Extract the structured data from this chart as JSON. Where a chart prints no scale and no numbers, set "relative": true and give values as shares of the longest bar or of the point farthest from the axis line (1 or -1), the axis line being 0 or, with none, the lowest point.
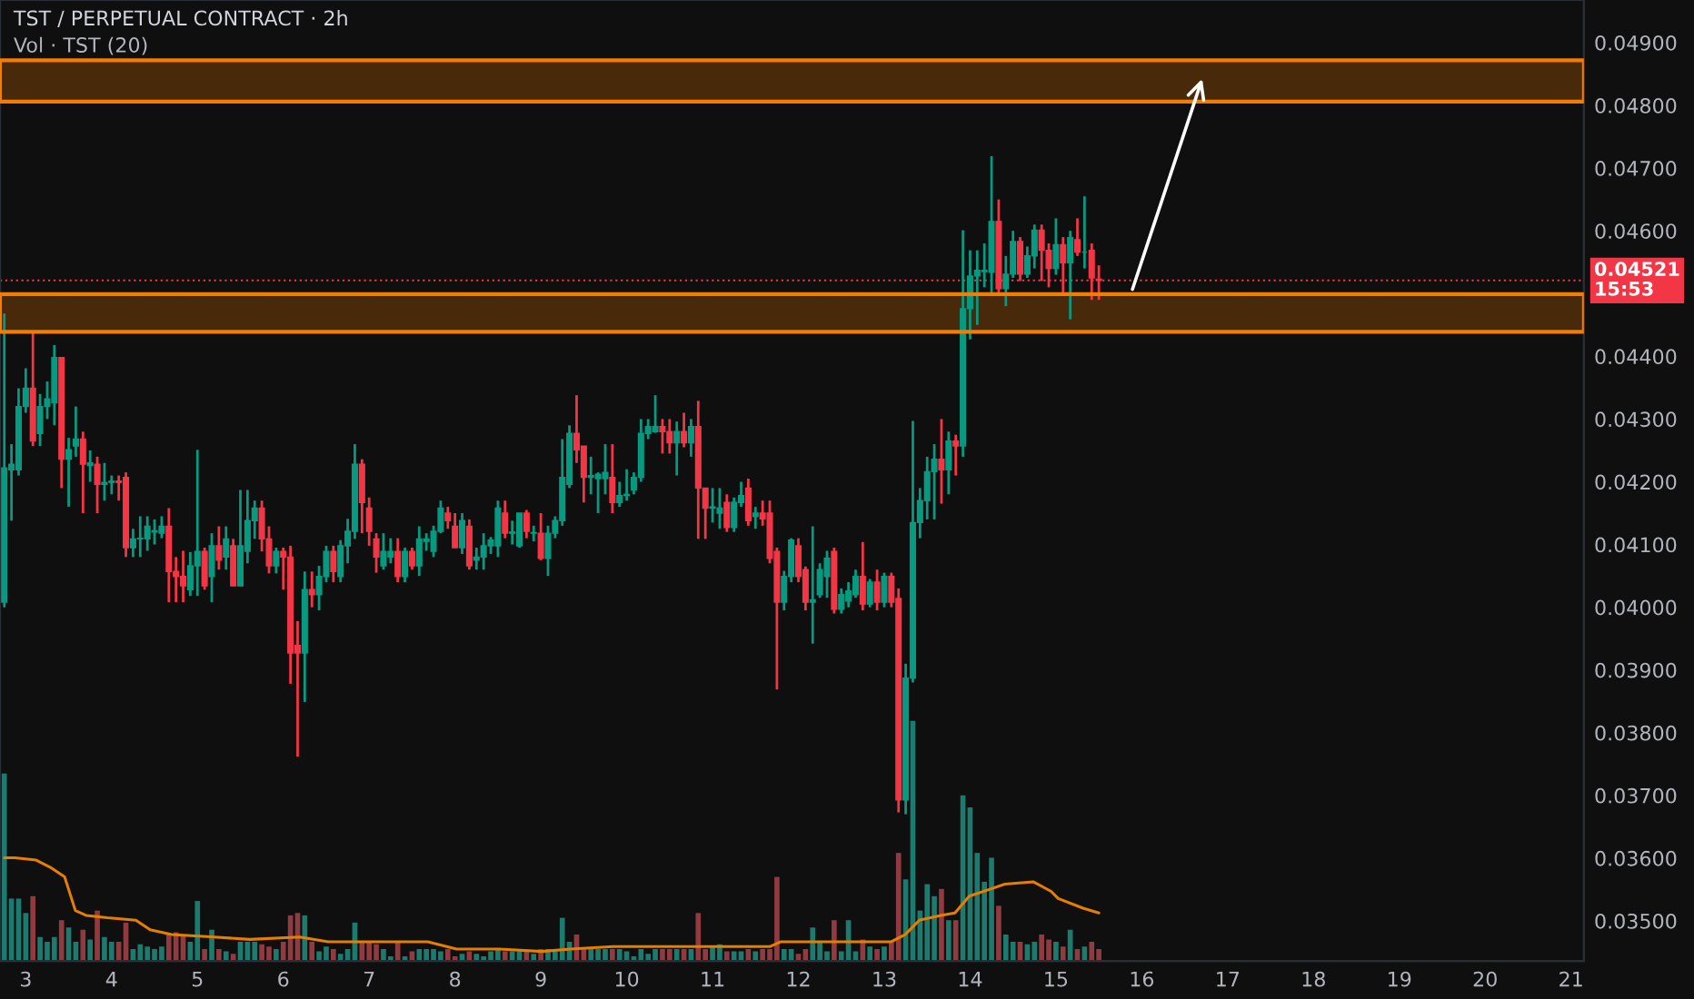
{
  "chart_data": [
    {
      "type": "candlestick",
      "title": "TST / PERPETUAL CONTRACT · 2h",
      "x": [
        2.75,
        2.8333,
        2.9167,
        3,
        3.0833,
        3.1667,
        3.25,
        3.3333,
        3.4167,
        3.5,
        3.5833,
        3.6667,
        3.75,
        3.8333,
        3.9167,
        4,
        4.0833,
        4.1667,
        4.25,
        4.3333,
        4.4167,
        4.5,
        4.5833,
        4.6667,
        4.75,
        4.8333,
        4.9167,
        5,
        5.0833,
        5.1667,
        5.25,
        5.3333,
        5.4167,
        5.5,
        5.5833,
        5.6667,
        5.75,
        5.8333,
        5.9167,
        6,
        6.0833,
        6.1667,
        6.25,
        6.3333,
        6.4167,
        6.5,
        6.5833,
        6.6667,
        6.75,
        6.8333,
        6.9167,
        7,
        7.0833,
        7.1667,
        7.25,
        7.3333,
        7.4167,
        7.5,
        7.5833,
        7.6667,
        7.75,
        7.8333,
        7.9167,
        8,
        8.0833,
        8.1667,
        8.25,
        8.3333,
        8.4167,
        8.5,
        8.5833,
        8.6667,
        8.75,
        8.8333,
        8.9167,
        9,
        9.0833,
        9.1667,
        9.25,
        9.3333,
        9.4167,
        9.5,
        9.5833,
        9.6667,
        9.75,
        9.8333,
        9.9167,
        10,
        10.0833,
        10.1667,
        10.25,
        10.3333,
        10.4167,
        10.5,
        10.5833,
        10.6667,
        10.75,
        10.8333,
        10.9167,
        11,
        11.0833,
        11.1667,
        11.25,
        11.3333,
        11.4167,
        11.5,
        11.5833,
        11.6667,
        11.75,
        11.8333,
        11.9167,
        12,
        12.0833,
        12.1667,
        12.25,
        12.3333,
        12.4167,
        12.5,
        12.5833,
        12.6667,
        12.75,
        12.8333,
        12.9167,
        13,
        13.0833,
        13.1667,
        13.25,
        13.3333,
        13.4167,
        13.5,
        13.5833,
        13.6667,
        13.75,
        13.8333,
        13.9167,
        14,
        14.0833,
        14.1667,
        14.25,
        14.3333,
        14.4167,
        14.5,
        14.5833,
        14.6667,
        14.75,
        14.8333,
        14.9167,
        15,
        15.0833,
        15.1667,
        15.25,
        15.3333,
        15.4167,
        15.5
      ],
      "ohlc": [
        [
          0.04008,
          0.04468,
          0.04,
          0.04222
        ],
        [
          0.04219,
          0.0426,
          0.04138,
          0.04228
        ],
        [
          0.04219,
          0.04349,
          0.0421,
          0.0432
        ],
        [
          0.0432,
          0.04381,
          0.0431,
          0.04349
        ],
        [
          0.04349,
          0.04439,
          0.04257,
          0.04265
        ],
        [
          0.04277,
          0.0434,
          0.04257,
          0.0432
        ],
        [
          0.0432,
          0.0436,
          0.043,
          0.04332
        ],
        [
          0.04326,
          0.04418,
          0.0429,
          0.04398
        ],
        [
          0.04398,
          0.04398,
          0.0419,
          0.04236
        ],
        [
          0.04236,
          0.0427,
          0.0416,
          0.04251
        ],
        [
          0.04257,
          0.0432,
          0.0424,
          0.04268
        ],
        [
          0.04268,
          0.0428,
          0.0415,
          0.04228
        ],
        [
          0.04226,
          0.0425,
          0.042,
          0.0423
        ],
        [
          0.04228,
          0.0424,
          0.0415,
          0.04196
        ],
        [
          0.04196,
          0.0423,
          0.0417,
          0.04199
        ],
        [
          0.04199,
          0.0421,
          0.0418,
          0.04201
        ],
        [
          0.04201,
          0.0421,
          0.0417,
          0.04199
        ],
        [
          0.04207,
          0.04215,
          0.0408,
          0.04095
        ],
        [
          0.04095,
          0.04125,
          0.0408,
          0.04109
        ],
        [
          0.04109,
          0.04145,
          0.0408,
          0.0411
        ],
        [
          0.04109,
          0.04145,
          0.0409,
          0.04129
        ],
        [
          0.0412,
          0.0414,
          0.041,
          0.04122
        ],
        [
          0.04118,
          0.04145,
          0.0411,
          0.04129
        ],
        [
          0.04129,
          0.04158,
          0.04008,
          0.04057
        ],
        [
          0.04057,
          0.0408,
          0.04008,
          0.04049
        ],
        [
          0.04049,
          0.0409,
          0.04008,
          0.04034
        ],
        [
          0.04028,
          0.04088,
          0.04018,
          0.04066
        ],
        [
          0.04066,
          0.04251,
          0.04018,
          0.04089
        ],
        [
          0.04089,
          0.04095,
          0.04028,
          0.04034
        ],
        [
          0.04049,
          0.04118,
          0.04008,
          0.04098
        ],
        [
          0.04098,
          0.04129,
          0.0406,
          0.04075
        ],
        [
          0.0408,
          0.04129,
          0.0406,
          0.04109
        ],
        [
          0.04098,
          0.04109,
          0.04034,
          0.04034
        ],
        [
          0.04034,
          0.04187,
          0.04034,
          0.04098
        ],
        [
          0.04089,
          0.04187,
          0.0407,
          0.04138
        ],
        [
          0.04138,
          0.0417,
          0.04109,
          0.04158
        ],
        [
          0.04158,
          0.0417,
          0.04089,
          0.04109
        ],
        [
          0.04109,
          0.04129,
          0.04054,
          0.04066
        ],
        [
          0.04066,
          0.04095,
          0.04054,
          0.04089
        ],
        [
          0.04089,
          0.04095,
          0.04028,
          0.0408
        ],
        [
          0.0408,
          0.04098,
          0.03878,
          0.03927
        ],
        [
          0.03939,
          0.03978,
          0.03762,
          0.03927
        ],
        [
          0.03927,
          0.04057,
          0.03849,
          0.04028
        ],
        [
          0.04028,
          0.04057,
          0.04,
          0.0402
        ],
        [
          0.0402,
          0.04066,
          0.03995,
          0.04049
        ],
        [
          0.04049,
          0.04098,
          0.0404,
          0.04089
        ],
        [
          0.04089,
          0.04098,
          0.0404,
          0.04057
        ],
        [
          0.04049,
          0.04107,
          0.0404,
          0.04098
        ],
        [
          0.04098,
          0.04141,
          0.0407,
          0.04121
        ],
        [
          0.04121,
          0.0426,
          0.04109,
          0.04228
        ],
        [
          0.04228,
          0.04236,
          0.04118,
          0.04167
        ],
        [
          0.04158,
          0.04175,
          0.04098,
          0.04121
        ],
        [
          0.04109,
          0.04118,
          0.04055,
          0.0408
        ],
        [
          0.04066,
          0.04118,
          0.0406,
          0.04089
        ],
        [
          0.0408,
          0.0411,
          0.0407,
          0.04089
        ],
        [
          0.04089,
          0.0411,
          0.0404,
          0.04049
        ],
        [
          0.04049,
          0.04095,
          0.0404,
          0.04089
        ],
        [
          0.04089,
          0.04095,
          0.0406,
          0.04066
        ],
        [
          0.04066,
          0.04129,
          0.0405,
          0.04109
        ],
        [
          0.04105,
          0.04118,
          0.0409,
          0.04109
        ],
        [
          0.04089,
          0.0413,
          0.0408,
          0.04121
        ],
        [
          0.04121,
          0.0417,
          0.04118,
          0.04158
        ],
        [
          0.0415,
          0.0416,
          0.04125,
          0.04138
        ],
        [
          0.04129,
          0.0415,
          0.04095,
          0.04095
        ],
        [
          0.04095,
          0.0415,
          0.04085,
          0.04138
        ],
        [
          0.04129,
          0.0414,
          0.0406,
          0.04066
        ],
        [
          0.04075,
          0.04095,
          0.0406,
          0.0408
        ],
        [
          0.0408,
          0.04118,
          0.0406,
          0.04098
        ],
        [
          0.04098,
          0.04112,
          0.04085,
          0.04107
        ],
        [
          0.04098,
          0.0417,
          0.0408,
          0.04158
        ],
        [
          0.0415,
          0.0417,
          0.0411,
          0.04118
        ],
        [
          0.04118,
          0.04138,
          0.041,
          0.0412
        ],
        [
          0.04098,
          0.0415,
          0.04095,
          0.0415
        ],
        [
          0.0415,
          0.04155,
          0.0411,
          0.04121
        ],
        [
          0.04118,
          0.0413,
          0.04105,
          0.04119
        ],
        [
          0.04118,
          0.0415,
          0.04075,
          0.04078
        ],
        [
          0.04078,
          0.0413,
          0.0405,
          0.04118
        ],
        [
          0.04118,
          0.04145,
          0.0411,
          0.04138
        ],
        [
          0.04138,
          0.04268,
          0.0413,
          0.04207
        ],
        [
          0.04196,
          0.0429,
          0.0419,
          0.04277
        ],
        [
          0.04277,
          0.04338,
          0.0423,
          0.04251
        ],
        [
          0.04257,
          0.04257,
          0.04167,
          0.04207
        ],
        [
          0.04207,
          0.0424,
          0.0418,
          0.0421
        ],
        [
          0.04205,
          0.04215,
          0.0415,
          0.04212
        ],
        [
          0.04205,
          0.0426,
          0.0418,
          0.04215
        ],
        [
          0.04207,
          0.0426,
          0.0415,
          0.04167
        ],
        [
          0.04167,
          0.042,
          0.0416,
          0.04178
        ],
        [
          0.04178,
          0.0422,
          0.0417,
          0.0418
        ],
        [
          0.04187,
          0.04215,
          0.0418,
          0.04207
        ],
        [
          0.04207,
          0.043,
          0.042,
          0.04277
        ],
        [
          0.04277,
          0.043,
          0.04268,
          0.04288
        ],
        [
          0.0428,
          0.04338,
          0.04278,
          0.04288
        ],
        [
          0.04288,
          0.043,
          0.04245,
          0.0428
        ],
        [
          0.0428,
          0.043,
          0.04245,
          0.04262
        ],
        [
          0.04262,
          0.04296,
          0.0421,
          0.0428
        ],
        [
          0.0428,
          0.0431,
          0.04255,
          0.04262
        ],
        [
          0.04262,
          0.043,
          0.0424,
          0.04288
        ],
        [
          0.04288,
          0.04329,
          0.04109,
          0.0419
        ],
        [
          0.0419,
          0.0419,
          0.04109,
          0.04158
        ],
        [
          0.04158,
          0.0419,
          0.04135,
          0.0416
        ],
        [
          0.0415,
          0.0419,
          0.04125,
          0.04158
        ],
        [
          0.04167,
          0.0418,
          0.0412,
          0.04127
        ],
        [
          0.04127,
          0.04175,
          0.0412,
          0.04167
        ],
        [
          0.04167,
          0.042,
          0.0416,
          0.04178
        ],
        [
          0.0419,
          0.04205,
          0.0413,
          0.04138
        ],
        [
          0.04145,
          0.0416,
          0.04125,
          0.0415
        ],
        [
          0.0415,
          0.0417,
          0.0413,
          0.04141
        ],
        [
          0.0415,
          0.0417,
          0.0407,
          0.04078
        ],
        [
          0.04089,
          0.04095,
          0.03869,
          0.04008
        ],
        [
          0.04008,
          0.04058,
          0.03995,
          0.04049
        ],
        [
          0.04049,
          0.0411,
          0.0404,
          0.04107
        ],
        [
          0.04098,
          0.0411,
          0.0404,
          0.04049
        ],
        [
          0.0406,
          0.04065,
          0.03995,
          0.04008
        ],
        [
          0.04008,
          0.04129,
          0.03942,
          0.04012
        ],
        [
          0.0402,
          0.0407,
          0.04015,
          0.0406
        ],
        [
          0.04049,
          0.0409,
          0.04015,
          0.04078
        ],
        [
          0.04089,
          0.04095,
          0.0399,
          0.03997
        ],
        [
          0.03997,
          0.0403,
          0.0399,
          0.0402
        ],
        [
          0.0401,
          0.0404,
          0.04,
          0.04026
        ],
        [
          0.0402,
          0.0406,
          0.04015,
          0.04049
        ],
        [
          0.04049,
          0.04104,
          0.03995,
          0.04005
        ],
        [
          0.04005,
          0.04045,
          0.04,
          0.0404
        ],
        [
          0.0404,
          0.0406,
          0.03995,
          0.04008
        ],
        [
          0.04008,
          0.04055,
          0.04,
          0.04049
        ],
        [
          0.04049,
          0.04055,
          0.04,
          0.04008
        ],
        [
          0.04014,
          0.0403,
          0.03673,
          0.03693
        ],
        [
          0.03693,
          0.0391,
          0.0367,
          0.03887
        ],
        [
          0.03887,
          0.04297,
          0.0388,
          0.04135
        ],
        [
          0.04135,
          0.0419,
          0.0411,
          0.0417
        ],
        [
          0.0417,
          0.0424,
          0.0414,
          0.04216
        ],
        [
          0.04216,
          0.0426,
          0.0414,
          0.04236
        ],
        [
          0.04236,
          0.043,
          0.04165,
          0.04219
        ],
        [
          0.04219,
          0.0428,
          0.0418,
          0.04265
        ],
        [
          0.04265,
          0.04275,
          0.0421,
          0.04257
        ],
        [
          0.04257,
          0.04601,
          0.0424,
          0.04476
        ],
        [
          0.04476,
          0.04569,
          0.04427,
          0.04528
        ],
        [
          0.04528,
          0.04569,
          0.0445,
          0.04537
        ],
        [
          0.04535,
          0.0458,
          0.0451,
          0.04537
        ],
        [
          0.04534,
          0.04719,
          0.045,
          0.04615
        ],
        [
          0.04615,
          0.0465,
          0.045,
          0.04508
        ],
        [
          0.04508,
          0.0456,
          0.0448,
          0.04531
        ],
        [
          0.04531,
          0.046,
          0.04525,
          0.04583
        ],
        [
          0.04583,
          0.0459,
          0.0452,
          0.04531
        ],
        [
          0.04531,
          0.04575,
          0.04525,
          0.0456
        ],
        [
          0.0456,
          0.0461,
          0.0454,
          0.04601
        ],
        [
          0.04601,
          0.0461,
          0.0452,
          0.04569
        ],
        [
          0.04569,
          0.0458,
          0.0451,
          0.0454
        ],
        [
          0.0454,
          0.0462,
          0.0453,
          0.04578
        ],
        [
          0.04578,
          0.0459,
          0.045,
          0.04549
        ],
        [
          0.04549,
          0.046,
          0.04459,
          0.04589
        ],
        [
          0.04586,
          0.0462,
          0.0456,
          0.04566
        ],
        [
          0.04566,
          0.04655,
          0.0454,
          0.04566
        ],
        [
          0.04569,
          0.0458,
          0.0449,
          0.04525
        ],
        [
          0.04523,
          0.04545,
          0.0449,
          0.04521
        ]
      ],
      "colors": [
        "#089981",
        "#089981",
        "#089981",
        "#089981",
        "#f23645",
        "#089981",
        "#089981",
        "#089981",
        "#f23645",
        "#089981",
        "#089981",
        "#f23645",
        "#089981",
        "#f23645",
        "#089981",
        "#089981",
        "#f23645",
        "#f23645",
        "#089981",
        "#089981",
        "#089981",
        "#089981",
        "#089981",
        "#f23645",
        "#f23645",
        "#f23645",
        "#089981",
        "#089981",
        "#f23645",
        "#089981",
        "#f23645",
        "#089981",
        "#f23645",
        "#089981",
        "#089981",
        "#089981",
        "#f23645",
        "#f23645",
        "#089981",
        "#f23645",
        "#f23645",
        "#f23645",
        "#089981",
        "#f23645",
        "#089981",
        "#089981",
        "#f23645",
        "#089981",
        "#089981",
        "#089981",
        "#f23645",
        "#f23645",
        "#f23645",
        "#089981",
        "#089981",
        "#f23645",
        "#089981",
        "#f23645",
        "#089981",
        "#089981",
        "#089981",
        "#089981",
        "#f23645",
        "#f23645",
        "#089981",
        "#f23645",
        "#089981",
        "#089981",
        "#089981",
        "#089981",
        "#f23645",
        "#089981",
        "#089981",
        "#f23645",
        "#089981",
        "#f23645",
        "#089981",
        "#089981",
        "#089981",
        "#089981",
        "#f23645",
        "#f23645",
        "#089981",
        "#089981",
        "#089981",
        "#f23645",
        "#089981",
        "#089981",
        "#089981",
        "#089981",
        "#089981",
        "#089981",
        "#f23645",
        "#f23645",
        "#089981",
        "#f23645",
        "#089981",
        "#f23645",
        "#f23645",
        "#089981",
        "#089981",
        "#f23645",
        "#089981",
        "#089981",
        "#f23645",
        "#089981",
        "#f23645",
        "#f23645",
        "#f23645",
        "#089981",
        "#089981",
        "#f23645",
        "#f23645",
        "#089981",
        "#089981",
        "#089981",
        "#f23645",
        "#089981",
        "#089981",
        "#089981",
        "#f23645",
        "#089981",
        "#f23645",
        "#089981",
        "#f23645",
        "#f23645",
        "#089981",
        "#089981",
        "#089981",
        "#089981",
        "#089981",
        "#f23645",
        "#089981",
        "#f23645",
        "#089981",
        "#089981",
        "#089981",
        "#089981",
        "#089981",
        "#f23645",
        "#089981",
        "#089981",
        "#f23645",
        "#089981",
        "#089981",
        "#f23645",
        "#f23645",
        "#089981",
        "#f23645",
        "#089981",
        "#f23645",
        "#089981",
        "#f23645",
        "#f23645"
      ],
      "bands": [
        {
          "axis": "y",
          "from": 0.04806,
          "to": 0.04872,
          "color": "#f57c00"
        },
        {
          "axis": "y",
          "from": 0.04439,
          "to": 0.04499,
          "color": "#f57c00"
        }
      ],
      "ref_lines": [
        {
          "axis": "y",
          "value": 0.04521,
          "label": "0.04521\n15:53",
          "color": "#f23645",
          "line_style": "dotted"
        }
      ],
      "xlim": [
        2.7,
        21.15
      ],
      "xticks": [
        3,
        4,
        5,
        6,
        7,
        8,
        9,
        10,
        11,
        12,
        13,
        14,
        15,
        16,
        17,
        18,
        19,
        20,
        21
      ],
      "ylim": [
        0.03436,
        0.04968
      ],
      "yticks": [
        {
          "value": 0.035,
          "label": "0.03500"
        },
        {
          "value": 0.036,
          "label": "0.03600"
        },
        {
          "value": 0.037,
          "label": "0.03700"
        },
        {
          "value": 0.038,
          "label": "0.03800"
        },
        {
          "value": 0.039,
          "label": "0.03900"
        },
        {
          "value": 0.04,
          "label": "0.04000"
        },
        {
          "value": 0.041,
          "label": "0.04100"
        },
        {
          "value": 0.042,
          "label": "0.04200"
        },
        {
          "value": 0.043,
          "label": "0.04300"
        },
        {
          "value": 0.044,
          "label": "0.04400"
        },
        {
          "value": 0.046,
          "label": "0.04600"
        },
        {
          "value": 0.047,
          "label": "0.04700"
        },
        {
          "value": 0.048,
          "label": "0.04800"
        },
        {
          "value": 0.049,
          "label": "0.04900"
        }
      ],
      "grid": false
    },
    {
      "type": "bar",
      "subtitle": "Vol · TST (20)",
      "relative": true,
      "tick_labels": false,
      "xlim": [
        2.7,
        21.15
      ],
      "grid": false,
      "series": [
        {
          "type": "bar",
          "x": [
            2.75,
            2.8333,
            2.9167,
            3,
            3.0833,
            3.1667,
            3.25,
            3.3333,
            3.4167,
            3.5,
            3.5833,
            3.6667,
            3.75,
            3.8333,
            3.9167,
            4,
            4.0833,
            4.1667,
            4.25,
            4.3333,
            4.4167,
            4.5,
            4.5833,
            4.6667,
            4.75,
            4.8333,
            4.9167,
            5,
            5.0833,
            5.1667,
            5.25,
            5.3333,
            5.4167,
            5.5,
            5.5833,
            5.6667,
            5.75,
            5.8333,
            5.9167,
            6,
            6.0833,
            6.1667,
            6.25,
            6.3333,
            6.4167,
            6.5,
            6.5833,
            6.6667,
            6.75,
            6.8333,
            6.9167,
            7,
            7.0833,
            7.1667,
            7.25,
            7.3333,
            7.4167,
            7.5,
            7.5833,
            7.6667,
            7.75,
            7.8333,
            7.9167,
            8,
            8.0833,
            8.1667,
            8.25,
            8.3333,
            8.4167,
            8.5,
            8.5833,
            8.6667,
            8.75,
            8.8333,
            8.9167,
            9,
            9.0833,
            9.1667,
            9.25,
            9.3333,
            9.4167,
            9.5,
            9.5833,
            9.6667,
            9.75,
            9.8333,
            9.9167,
            10,
            10.0833,
            10.1667,
            10.25,
            10.3333,
            10.4167,
            10.5,
            10.5833,
            10.6667,
            10.75,
            10.8333,
            10.9167,
            11,
            11.0833,
            11.1667,
            11.25,
            11.3333,
            11.4167,
            11.5,
            11.5833,
            11.6667,
            11.75,
            11.8333,
            11.9167,
            12,
            12.0833,
            12.1667,
            12.25,
            12.3333,
            12.4167,
            12.5,
            12.5833,
            12.6667,
            12.75,
            12.8333,
            12.9167,
            13,
            13.0833,
            13.1667,
            13.25,
            13.3333,
            13.4167,
            13.5,
            13.5833,
            13.6667,
            13.75,
            13.8333,
            13.9167,
            14,
            14.0833,
            14.1667,
            14.25,
            14.3333,
            14.4167,
            14.5,
            14.5833,
            14.6667,
            14.75,
            14.8333,
            14.9167,
            15,
            15.0833,
            15.1667,
            15.25,
            15.3333,
            15.4167,
            15.5
          ],
          "values": [
            0.78,
            0.26,
            0.26,
            0.2,
            0.27,
            0.1,
            0.08,
            0.1,
            0.17,
            0.14,
            0.08,
            0.13,
            0.09,
            0.21,
            0.1,
            0.08,
            0.08,
            0.16,
            0.05,
            0.07,
            0.06,
            0.05,
            0.06,
            0.11,
            0.12,
            0.11,
            0.08,
            0.25,
            0.05,
            0.13,
            0.05,
            0.04,
            0.03,
            0.08,
            0.08,
            0.08,
            0.07,
            0.06,
            0.05,
            0.08,
            0.19,
            0.2,
            0.19,
            0.08,
            0.04,
            0.06,
            0.05,
            0.03,
            0.05,
            0.16,
            0.08,
            0.08,
            0.07,
            0.05,
            0.02,
            0.08,
            0.02,
            0.04,
            0.05,
            0.05,
            0.05,
            0.04,
            0.05,
            0.02,
            0.03,
            0.04,
            0.03,
            0.02,
            0.04,
            0.05,
            0.04,
            0.04,
            0.04,
            0.04,
            0.03,
            0.05,
            0.05,
            0.04,
            0.18,
            0.08,
            0.11,
            0.05,
            0.05,
            0.05,
            0.05,
            0.05,
            0.05,
            0.04,
            0.02,
            0.05,
            0.03,
            0.05,
            0.05,
            0.05,
            0.05,
            0.05,
            0.05,
            0.2,
            0.05,
            0.06,
            0.07,
            0.04,
            0.04,
            0.04,
            0.05,
            0.04,
            0.05,
            0.05,
            0.35,
            0.05,
            0.05,
            0.03,
            0.05,
            0.14,
            0.08,
            0.04,
            0.17,
            0.04,
            0.17,
            0.04,
            0.09,
            0.06,
            0.05,
            0.06,
            0.08,
            0.45,
            0.34,
            1,
            0.21,
            0.32,
            0.27,
            0.3,
            0.17,
            0.17,
            0.69,
            0.64,
            0.45,
            0.33,
            0.43,
            0.23,
            0.11,
            0.08,
            0.08,
            0.07,
            0.08,
            0.11,
            0.09,
            0.08,
            0.06,
            0.13,
            0.05,
            0.06,
            0.08,
            0.05
          ],
          "colors": [
            "#1d7a6e",
            "#1d7a6e",
            "#1d7a6e",
            "#1d7a6e",
            "#8f3b40",
            "#1d7a6e",
            "#1d7a6e",
            "#1d7a6e",
            "#8f3b40",
            "#1d7a6e",
            "#1d7a6e",
            "#8f3b40",
            "#1d7a6e",
            "#8f3b40",
            "#1d7a6e",
            "#1d7a6e",
            "#8f3b40",
            "#8f3b40",
            "#1d7a6e",
            "#1d7a6e",
            "#1d7a6e",
            "#1d7a6e",
            "#1d7a6e",
            "#8f3b40",
            "#8f3b40",
            "#8f3b40",
            "#1d7a6e",
            "#1d7a6e",
            "#8f3b40",
            "#1d7a6e",
            "#8f3b40",
            "#1d7a6e",
            "#8f3b40",
            "#1d7a6e",
            "#1d7a6e",
            "#1d7a6e",
            "#8f3b40",
            "#8f3b40",
            "#1d7a6e",
            "#8f3b40",
            "#8f3b40",
            "#8f3b40",
            "#1d7a6e",
            "#8f3b40",
            "#1d7a6e",
            "#1d7a6e",
            "#8f3b40",
            "#1d7a6e",
            "#1d7a6e",
            "#1d7a6e",
            "#8f3b40",
            "#8f3b40",
            "#8f3b40",
            "#1d7a6e",
            "#1d7a6e",
            "#8f3b40",
            "#1d7a6e",
            "#8f3b40",
            "#1d7a6e",
            "#1d7a6e",
            "#1d7a6e",
            "#1d7a6e",
            "#8f3b40",
            "#8f3b40",
            "#1d7a6e",
            "#8f3b40",
            "#1d7a6e",
            "#1d7a6e",
            "#1d7a6e",
            "#1d7a6e",
            "#8f3b40",
            "#1d7a6e",
            "#1d7a6e",
            "#8f3b40",
            "#1d7a6e",
            "#8f3b40",
            "#1d7a6e",
            "#1d7a6e",
            "#1d7a6e",
            "#1d7a6e",
            "#8f3b40",
            "#8f3b40",
            "#1d7a6e",
            "#1d7a6e",
            "#1d7a6e",
            "#8f3b40",
            "#1d7a6e",
            "#1d7a6e",
            "#1d7a6e",
            "#1d7a6e",
            "#1d7a6e",
            "#1d7a6e",
            "#8f3b40",
            "#8f3b40",
            "#1d7a6e",
            "#8f3b40",
            "#1d7a6e",
            "#8f3b40",
            "#8f3b40",
            "#1d7a6e",
            "#1d7a6e",
            "#8f3b40",
            "#1d7a6e",
            "#1d7a6e",
            "#8f3b40",
            "#1d7a6e",
            "#8f3b40",
            "#8f3b40",
            "#8f3b40",
            "#1d7a6e",
            "#1d7a6e",
            "#8f3b40",
            "#8f3b40",
            "#1d7a6e",
            "#1d7a6e",
            "#1d7a6e",
            "#8f3b40",
            "#1d7a6e",
            "#1d7a6e",
            "#1d7a6e",
            "#8f3b40",
            "#1d7a6e",
            "#8f3b40",
            "#1d7a6e",
            "#8f3b40",
            "#8f3b40",
            "#1d7a6e",
            "#1d7a6e",
            "#1d7a6e",
            "#1d7a6e",
            "#1d7a6e",
            "#8f3b40",
            "#1d7a6e",
            "#8f3b40",
            "#1d7a6e",
            "#1d7a6e",
            "#1d7a6e",
            "#1d7a6e",
            "#1d7a6e",
            "#8f3b40",
            "#1d7a6e",
            "#1d7a6e",
            "#8f3b40",
            "#1d7a6e",
            "#1d7a6e",
            "#8f3b40",
            "#8f3b40",
            "#1d7a6e",
            "#8f3b40",
            "#1d7a6e",
            "#8f3b40",
            "#1d7a6e",
            "#8f3b40",
            "#8f3b40"
          ]
        },
        {
          "type": "line",
          "color": "#e67e00",
          "x": [
            2.75,
            2.872,
            3.122,
            3.287,
            3.453,
            3.578,
            3.702,
            3.951,
            4.283,
            4.449,
            4.698,
            5.195,
            5.61,
            6.191,
            6.522,
            7.021,
            7.684,
            8.017,
            8.514,
            9.012,
            9.344,
            9.841,
            10.836,
            11.667,
            11.791,
            13.077,
            13.243,
            13.409,
            13.658,
            13.824,
            13.99,
            14.239,
            14.405,
            14.736,
            14.944,
            15.027,
            15.316,
            15.5
          ],
          "values": [
            0.43,
            0.43,
            0.42,
            0.39,
            0.35,
            0.21,
            0.19,
            0.18,
            0.17,
            0.13,
            0.11,
            0.1,
            0.09,
            0.1,
            0.08,
            0.08,
            0.08,
            0.05,
            0.05,
            0.04,
            0.05,
            0.06,
            0.06,
            0.06,
            0.08,
            0.08,
            0.11,
            0.17,
            0.19,
            0.2,
            0.27,
            0.3,
            0.32,
            0.33,
            0.29,
            0.26,
            0.22,
            0.2
          ]
        }
      ]
    }
  ]
}
